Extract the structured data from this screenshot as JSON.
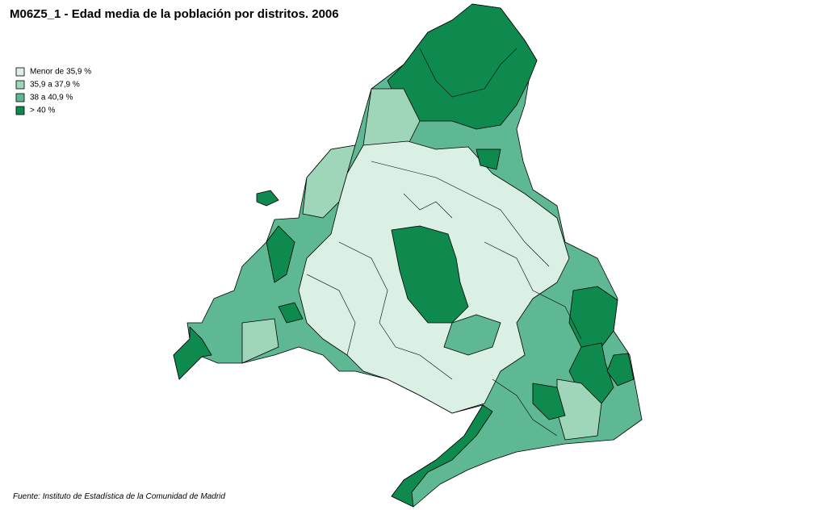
{
  "title": "M06Z5_1 -  Edad media de la población por distritos. 2006",
  "legend": [
    {
      "label": "Menor de 35,9 %",
      "color": "#daf0e4"
    },
    {
      "label": "35,9 a 37,9 %",
      "color": "#9fd5b9"
    },
    {
      "label": "38 a 40,9 %",
      "color": "#5eb893"
    },
    {
      "label": "> 40 %",
      "color": "#0e8a4e"
    }
  ],
  "source": "Fuente: Instituto de Estadística de la Comunidad de Madrid"
}
